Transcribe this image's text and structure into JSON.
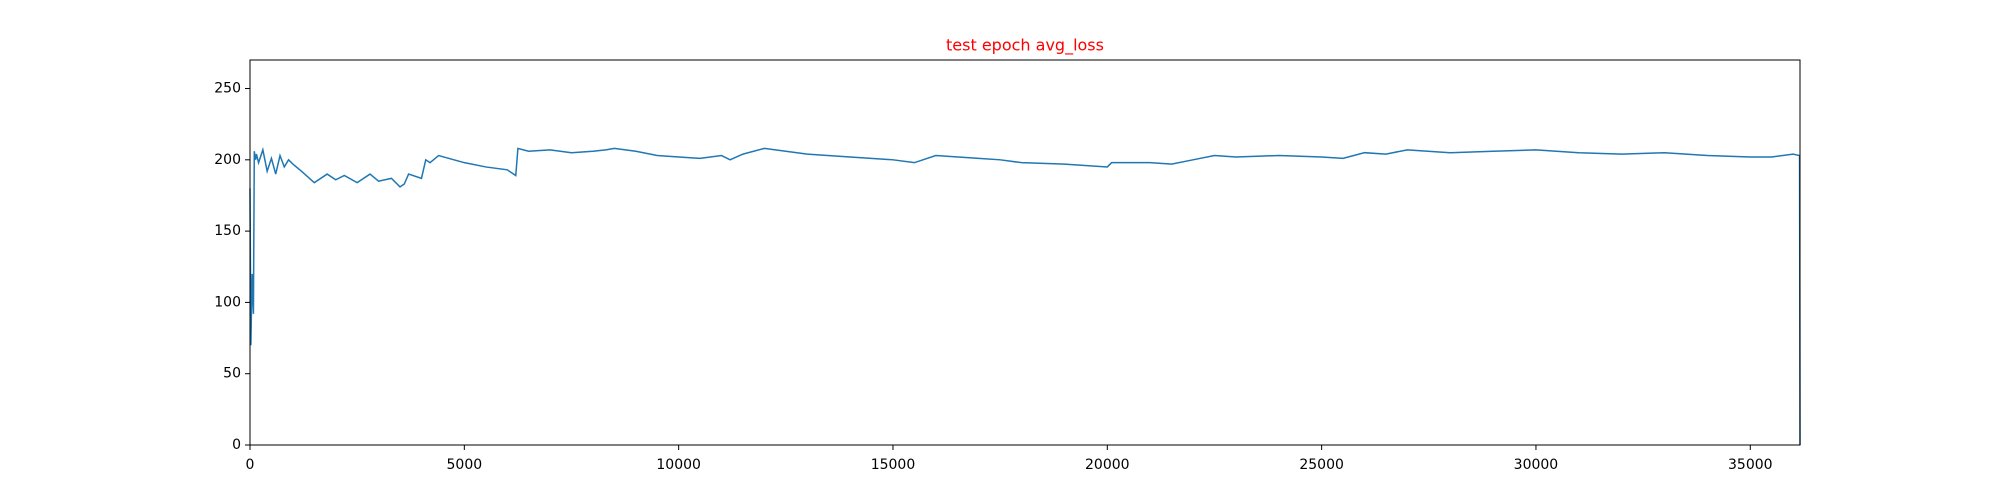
{
  "chart_data": {
    "type": "line",
    "title": "test epoch avg_loss",
    "x": [
      0,
      20,
      50,
      80,
      100,
      130,
      150,
      200,
      300,
      400,
      500,
      600,
      700,
      800,
      900,
      1000,
      1200,
      1500,
      1800,
      2000,
      2200,
      2500,
      2800,
      3000,
      3300,
      3500,
      3600,
      3700,
      4000,
      4100,
      4200,
      4400,
      5000,
      5500,
      6000,
      6200,
      6250,
      6500,
      7000,
      7500,
      8000,
      8300,
      8500,
      9000,
      9500,
      10000,
      10500,
      11000,
      11200,
      11500,
      12000,
      13000,
      14000,
      15000,
      15500,
      16000,
      17000,
      17500,
      18000,
      19000,
      20000,
      20100,
      21000,
      21500,
      22000,
      22500,
      23000,
      24000,
      25000,
      25500,
      26000,
      26500,
      27000,
      28000,
      29000,
      30000,
      31000,
      32000,
      33000,
      34000,
      35000,
      35500,
      36000,
      36150,
      36160
    ],
    "series": [
      {
        "name": "avg_loss",
        "color": "#1f77b4",
        "values": [
          180,
          70,
          120,
          92,
          206,
          200,
          204,
          198,
          207,
          192,
          201,
          190,
          203,
          195,
          200,
          197,
          192,
          184,
          190,
          186,
          189,
          184,
          190,
          185,
          187,
          181,
          183,
          190,
          187,
          200,
          198,
          203,
          198,
          195,
          193,
          189,
          208,
          206,
          207,
          205,
          206,
          207,
          208,
          206,
          203,
          202,
          201,
          203,
          200,
          204,
          208,
          204,
          202,
          200,
          198,
          203,
          201,
          200,
          198,
          197,
          195,
          198,
          198,
          197,
          200,
          203,
          202,
          203,
          202,
          201,
          205,
          204,
          207,
          205,
          206,
          207,
          205,
          204,
          205,
          203,
          202,
          202,
          204,
          203,
          0
        ]
      }
    ],
    "xlim": [
      0,
      36160
    ],
    "ylim": [
      0,
      270
    ],
    "xticks": [
      0,
      5000,
      10000,
      15000,
      20000,
      25000,
      30000,
      35000
    ],
    "yticks": [
      0,
      50,
      100,
      150,
      200,
      250
    ]
  }
}
